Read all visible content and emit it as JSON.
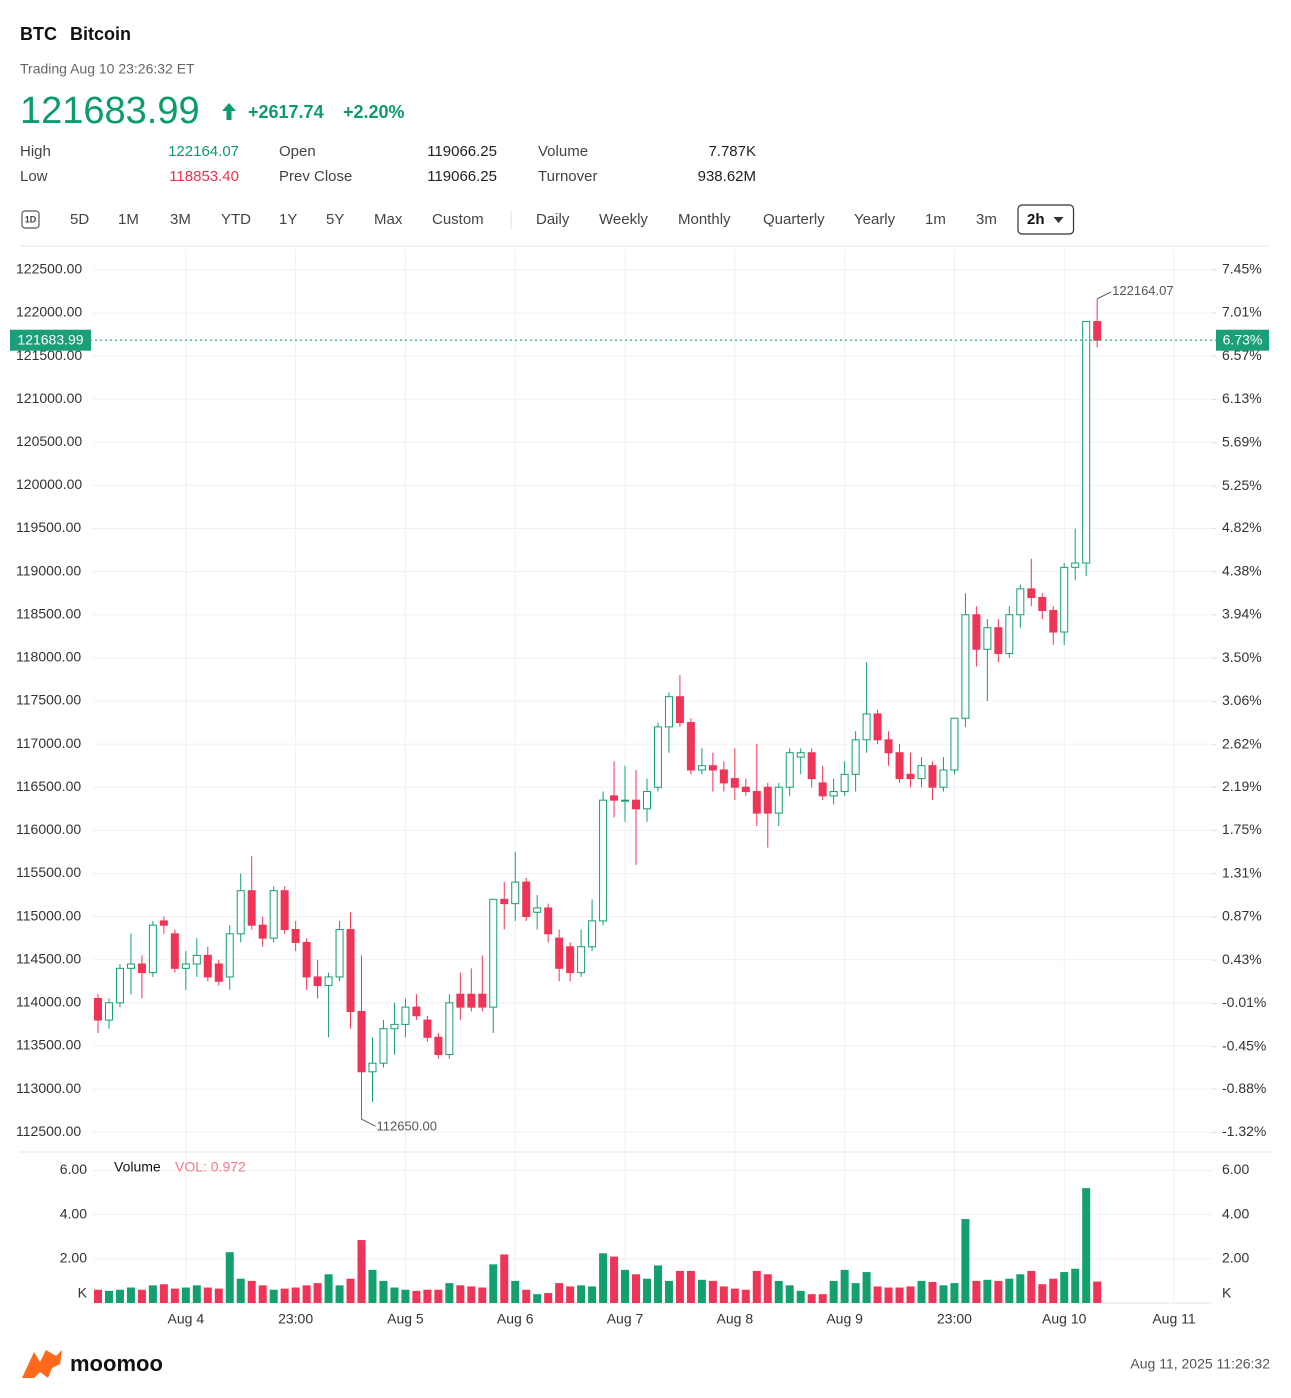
{
  "header": {
    "symbol": "BTC",
    "name": "Bitcoin",
    "status": "Trading Aug 10 23:26:32 ET",
    "price": "121683.99",
    "change": "+2617.74",
    "change_pct": "+2.20%"
  },
  "stats": [
    [
      {
        "label": "High",
        "value": "122164.07"
      },
      {
        "label": "Open",
        "value": "119066.25"
      },
      {
        "label": "Volume",
        "value": "7.787K"
      }
    ],
    [
      {
        "label": "Low",
        "value": "118853.40"
      },
      {
        "label": "Prev Close",
        "value": "119066.25"
      },
      {
        "label": "Turnover",
        "value": "938.62M"
      }
    ]
  ],
  "toolbar": {
    "ranges": [
      "1D",
      "5D",
      "1M",
      "3M",
      "YTD",
      "1Y",
      "5Y",
      "Max",
      "Custom"
    ],
    "intervals": [
      "Daily",
      "Weekly",
      "Monthly",
      "Quarterly",
      "Yearly",
      "1m",
      "3m",
      "2h"
    ],
    "active": "2h"
  },
  "chart_data": {
    "type": "candlestick",
    "up_color": "#13a06d",
    "down_color": "#ef3557",
    "price_line_color": "#1a9f7a",
    "grid": true,
    "categories": [
      null,
      null,
      null,
      null,
      null,
      null,
      null,
      null,
      "Aug 4",
      null,
      null,
      null,
      null,
      null,
      null,
      null,
      null,
      null,
      "23:00",
      null,
      null,
      null,
      null,
      null,
      null,
      null,
      null,
      null,
      "Aug 5",
      null,
      null,
      null,
      null,
      null,
      null,
      null,
      null,
      null,
      "Aug 6",
      null,
      null,
      null,
      null,
      null,
      null,
      null,
      null,
      null,
      "Aug 7",
      null,
      null,
      null,
      null,
      null,
      null,
      null,
      null,
      null,
      "Aug 8",
      null,
      null,
      null,
      null,
      null,
      null,
      null,
      null,
      null,
      "Aug 9",
      null,
      null,
      null,
      null,
      null,
      null,
      null,
      null,
      null,
      "23:00",
      null,
      null,
      null,
      null,
      null,
      null,
      null,
      null,
      null,
      "Aug 10",
      null,
      null,
      null,
      null,
      null,
      null,
      null,
      null,
      null,
      "Aug 11",
      null,
      null,
      null
    ],
    "open": [
      114050,
      113800,
      114000,
      114400,
      114450,
      114350,
      114950,
      114800,
      114400,
      114450,
      114550,
      114450,
      114300,
      114800,
      115300,
      114900,
      114750,
      115300,
      114850,
      114700,
      114300,
      114200,
      114300,
      114850,
      113900,
      113200,
      113300,
      113700,
      113750,
      113950,
      113800,
      113600,
      113400,
      114100,
      114100,
      114100,
      113950,
      115200,
      115150,
      115400,
      115050,
      115100,
      114750,
      114650,
      114350,
      114650,
      114950,
      116400,
      116350,
      116350,
      116250,
      116500,
      117200,
      117550,
      117250,
      116700,
      116750,
      116700,
      116600,
      116500,
      116450,
      116500,
      116200,
      116500,
      116850,
      116900,
      116550,
      116400,
      116450,
      116650,
      117050,
      117350,
      117050,
      116900,
      116650,
      116600,
      116750,
      116500,
      116700,
      117300,
      118500,
      118100,
      118350,
      118050,
      118500,
      118800,
      118700,
      118550,
      118300,
      119050,
      119100,
      121900,
      null,
      null,
      null,
      null,
      null,
      null,
      null,
      null,
      null,
      null
    ],
    "high": [
      114100,
      114050,
      114450,
      114800,
      114550,
      114950,
      115000,
      114850,
      114600,
      114750,
      114650,
      114500,
      114900,
      115500,
      115700,
      115000,
      115350,
      115350,
      114950,
      114750,
      114500,
      114350,
      114950,
      115050,
      114550,
      113600,
      113800,
      114000,
      114050,
      114100,
      113850,
      113650,
      114100,
      114350,
      114400,
      114550,
      115200,
      115400,
      115750,
      115450,
      115250,
      115150,
      114850,
      114700,
      114850,
      115200,
      116450,
      116800,
      116750,
      116700,
      116600,
      117250,
      117600,
      117800,
      117300,
      116950,
      116900,
      116800,
      116950,
      116600,
      117000,
      116550,
      116550,
      116950,
      116950,
      116950,
      116750,
      116600,
      116800,
      117150,
      117950,
      117400,
      117150,
      117000,
      116900,
      116850,
      116800,
      116850,
      117300,
      118750,
      118600,
      118450,
      118450,
      118600,
      118850,
      119150,
      118750,
      118600,
      119100,
      119500,
      121900,
      122164.07,
      null,
      null,
      null,
      null,
      null,
      null,
      null,
      null,
      null,
      null
    ],
    "low": [
      113650,
      113700,
      113950,
      114100,
      114050,
      114300,
      114800,
      114350,
      114150,
      114300,
      114250,
      114200,
      114150,
      114700,
      114850,
      114650,
      114700,
      114800,
      114600,
      114150,
      114050,
      113600,
      114250,
      113700,
      112650,
      112850,
      113250,
      113400,
      113600,
      113800,
      113550,
      113350,
      113350,
      113800,
      113900,
      113900,
      113650,
      114850,
      114950,
      114950,
      114850,
      114700,
      114250,
      114250,
      114300,
      114600,
      114900,
      116150,
      116100,
      115600,
      116100,
      116450,
      116900,
      117200,
      116650,
      116650,
      116450,
      116450,
      116350,
      116400,
      116050,
      115800,
      116050,
      116400,
      116650,
      116500,
      116350,
      116300,
      116400,
      116450,
      116900,
      117000,
      116750,
      116550,
      116500,
      116500,
      116350,
      116450,
      116650,
      117200,
      117900,
      117500,
      117950,
      118000,
      118350,
      118600,
      118450,
      118150,
      118150,
      118900,
      118950,
      121600,
      null,
      null,
      null,
      null,
      null,
      null,
      null,
      null,
      null,
      null
    ],
    "close": [
      113800,
      114000,
      114400,
      114450,
      114350,
      114900,
      114900,
      114400,
      114450,
      114550,
      114300,
      114250,
      114800,
      115300,
      114900,
      114750,
      115300,
      114850,
      114700,
      114300,
      114200,
      114300,
      114850,
      113900,
      113200,
      113300,
      113700,
      113750,
      113950,
      113850,
      113600,
      113400,
      114000,
      113950,
      113950,
      113950,
      115200,
      115150,
      115400,
      115000,
      115100,
      114800,
      114400,
      114350,
      114650,
      114950,
      116350,
      116350,
      116350,
      116250,
      116450,
      117200,
      117550,
      117250,
      116700,
      116750,
      116700,
      116550,
      116500,
      116450,
      116200,
      116200,
      116500,
      116900,
      116900,
      116600,
      116400,
      116450,
      116650,
      117050,
      117350,
      117050,
      116900,
      116600,
      116600,
      116750,
      116500,
      116700,
      117300,
      118500,
      118100,
      118350,
      118050,
      118500,
      118800,
      118700,
      118550,
      118300,
      119050,
      119100,
      121900,
      121683.99,
      null,
      null,
      null,
      null,
      null,
      null,
      null,
      null,
      null,
      null
    ],
    "ylim": [
      112270,
      122730
    ],
    "yticks": [
      {
        "value": 122500,
        "label": "122500.00"
      },
      {
        "value": 122000,
        "label": "122000.00"
      },
      {
        "value": 121500,
        "label": "121500.00"
      },
      {
        "value": 121000,
        "label": "121000.00"
      },
      {
        "value": 120500,
        "label": "120500.00"
      },
      {
        "value": 120000,
        "label": "120000.00"
      },
      {
        "value": 119500,
        "label": "119500.00"
      },
      {
        "value": 119000,
        "label": "119000.00"
      },
      {
        "value": 118500,
        "label": "118500.00"
      },
      {
        "value": 118000,
        "label": "118000.00"
      },
      {
        "value": 117500,
        "label": "117500.00"
      },
      {
        "value": 117000,
        "label": "117000.00"
      },
      {
        "value": 116500,
        "label": "116500.00"
      },
      {
        "value": 116000,
        "label": "116000.00"
      },
      {
        "value": 115500,
        "label": "115500.00"
      },
      {
        "value": 115000,
        "label": "115000.00"
      },
      {
        "value": 114500,
        "label": "114500.00"
      },
      {
        "value": 114000,
        "label": "114000.00"
      },
      {
        "value": 113500,
        "label": "113500.00"
      },
      {
        "value": 113000,
        "label": "113000.00"
      },
      {
        "value": 112500,
        "label": "112500.00"
      }
    ],
    "y2lim": [
      -1.52,
      7.65
    ],
    "y2ticks": [
      {
        "value": 7.45,
        "label": "7.45%"
      },
      {
        "value": 7.01,
        "label": "7.01%"
      },
      {
        "value": 6.57,
        "label": "6.57%"
      },
      {
        "value": 6.13,
        "label": "6.13%"
      },
      {
        "value": 5.69,
        "label": "5.69%"
      },
      {
        "value": 5.25,
        "label": "5.25%"
      },
      {
        "value": 4.82,
        "label": "4.82%"
      },
      {
        "value": 4.38,
        "label": "4.38%"
      },
      {
        "value": 3.94,
        "label": "3.94%"
      },
      {
        "value": 3.5,
        "label": "3.50%"
      },
      {
        "value": 3.06,
        "label": "3.06%"
      },
      {
        "value": 2.62,
        "label": "2.62%"
      },
      {
        "value": 2.19,
        "label": "2.19%"
      },
      {
        "value": 1.75,
        "label": "1.75%"
      },
      {
        "value": 1.31,
        "label": "1.31%"
      },
      {
        "value": 0.87,
        "label": "0.87%"
      },
      {
        "value": 0.43,
        "label": "0.43%"
      },
      {
        "value": -0.01,
        "label": "-0.01%"
      },
      {
        "value": -0.45,
        "label": "-0.45%"
      },
      {
        "value": -0.88,
        "label": "-0.88%"
      },
      {
        "value": -1.32,
        "label": "-1.32%"
      }
    ],
    "last_pct_label": "6.73%",
    "high_label": "122164.07",
    "low_label": "112650.00",
    "volume": {
      "title": "Volume",
      "current_label": "VOL: 0.972",
      "unit": "K",
      "values": [
        0.6,
        0.55,
        0.6,
        0.7,
        0.6,
        0.8,
        0.85,
        0.65,
        0.7,
        0.8,
        0.7,
        0.65,
        2.3,
        1.1,
        1.0,
        0.8,
        0.6,
        0.65,
        0.7,
        0.8,
        0.9,
        1.3,
        0.8,
        1.1,
        2.85,
        1.5,
        1.0,
        0.7,
        0.6,
        0.55,
        0.6,
        0.6,
        0.9,
        0.8,
        0.75,
        0.7,
        1.75,
        2.2,
        1.0,
        0.6,
        0.4,
        0.45,
        0.9,
        0.75,
        0.8,
        0.75,
        2.25,
        2.1,
        1.5,
        1.3,
        1.1,
        1.7,
        1.0,
        1.45,
        1.45,
        1.05,
        1.0,
        0.75,
        0.65,
        0.6,
        1.45,
        1.3,
        1.0,
        0.8,
        0.55,
        0.4,
        0.4,
        1.0,
        1.5,
        0.9,
        1.4,
        0.75,
        0.7,
        0.7,
        0.75,
        1.0,
        0.95,
        0.8,
        0.9,
        3.8,
        1.0,
        1.05,
        1.0,
        1.1,
        1.3,
        1.45,
        0.85,
        1.1,
        1.4,
        1.55,
        5.2,
        0.972,
        null,
        null,
        null,
        null,
        null,
        null,
        null,
        null,
        null,
        null
      ],
      "ylim": [
        0,
        6.7
      ],
      "yticks": [
        {
          "value": 6,
          "label": "6.00"
        },
        {
          "value": 4,
          "label": "4.00"
        },
        {
          "value": 2,
          "label": "2.00"
        }
      ]
    }
  },
  "footer": {
    "brand": "moomoo",
    "timestamp": "Aug 11, 2025 11:26:32"
  }
}
